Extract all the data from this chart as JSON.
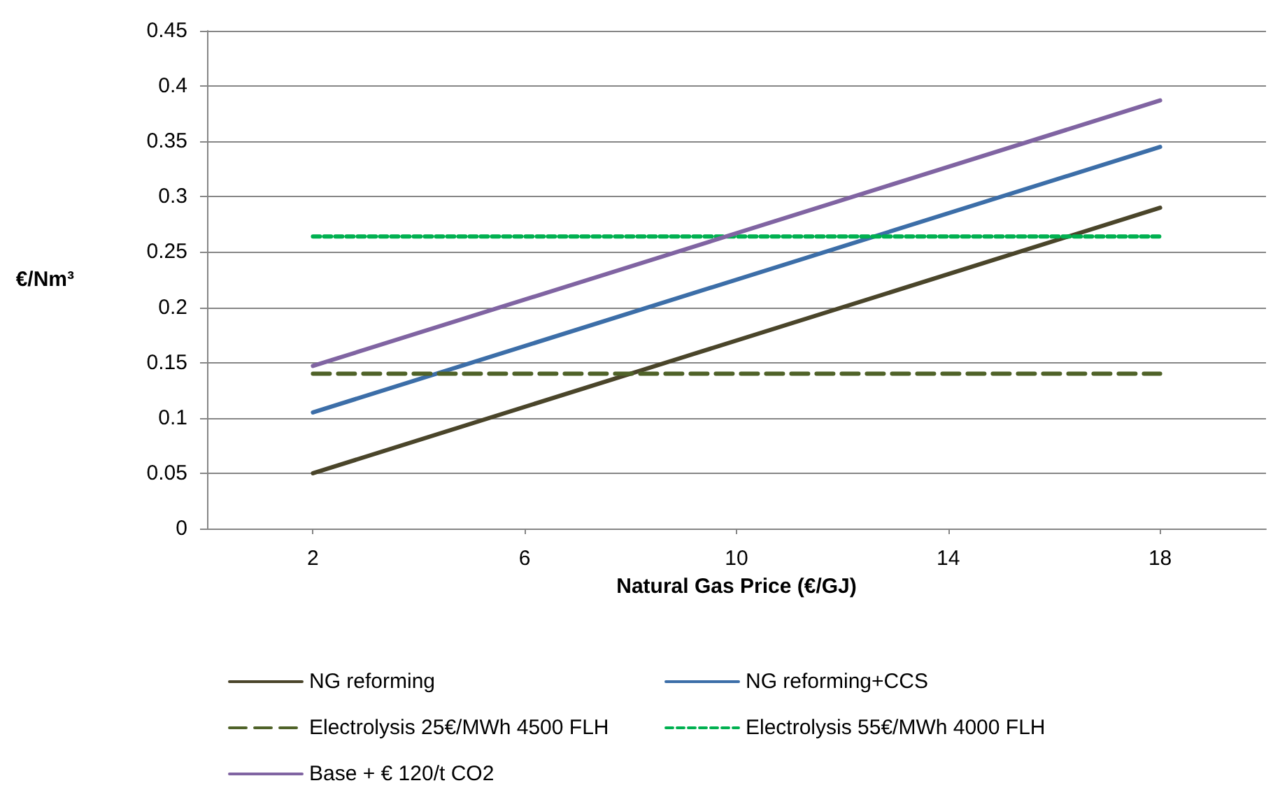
{
  "chart_data": {
    "type": "line",
    "xlabel": "Natural Gas Price (€/GJ)",
    "ylabel": "€/Nm³",
    "xlim": [
      0,
      20
    ],
    "xticks": [
      2,
      6,
      10,
      14,
      18
    ],
    "ylim": [
      0,
      0.45
    ],
    "yticks": [
      0,
      0.05,
      0.1,
      0.15,
      0.2,
      0.25,
      0.3,
      0.35,
      0.4,
      0.45
    ],
    "grid": "y",
    "legend": "bottom",
    "marker": "none",
    "x": [
      2,
      18
    ],
    "series": [
      {
        "name": "NG reforming",
        "color": "#4a452a",
        "values": [
          0.05,
          0.29
        ],
        "line_style": "solid"
      },
      {
        "name": "NG reforming+CCS",
        "color": "#3c6ea8",
        "values": [
          0.105,
          0.345
        ],
        "line_style": "solid"
      },
      {
        "name": "Electrolysis 25€/MWh 4500 FLH",
        "color": "#4f6228",
        "values": [
          0.14,
          0.14
        ],
        "line_style": "dashed"
      },
      {
        "name": "Electrolysis 55€/MWh 4000 FLH",
        "color": "#00b050",
        "values": [
          0.264,
          0.264
        ],
        "line_style": "dotted"
      },
      {
        "name": "Base + € 120/t CO2",
        "color": "#8064a2",
        "values": [
          0.147,
          0.387
        ],
        "line_style": "solid"
      }
    ]
  }
}
